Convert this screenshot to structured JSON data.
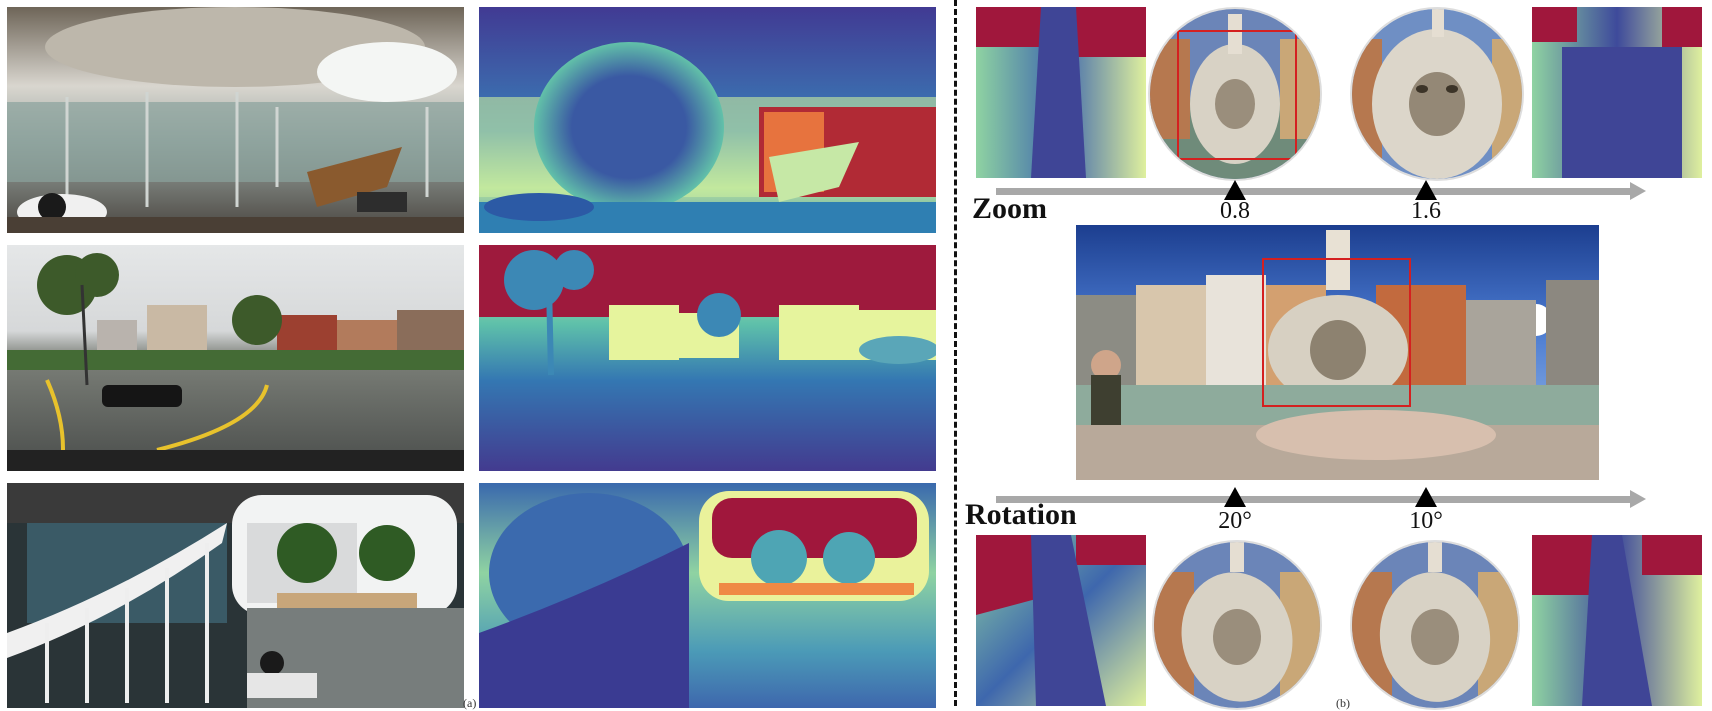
{
  "labels": {
    "zoom": "Zoom",
    "rotation": "Rotation",
    "left_caption_mark": "(a)",
    "right_caption_mark": "(b)"
  },
  "zoom_ticks": [
    "0.8",
    "1.6"
  ],
  "rotation_ticks": [
    "20°",
    "10°"
  ],
  "colors": {
    "depth_near": "#3b2e8a",
    "depth_mid": "#2aa0b8",
    "depth_light": "#e9f5a6",
    "depth_far": "#a0183c",
    "arrow": "#a8a8a8",
    "crop_box": "#d42020"
  }
}
